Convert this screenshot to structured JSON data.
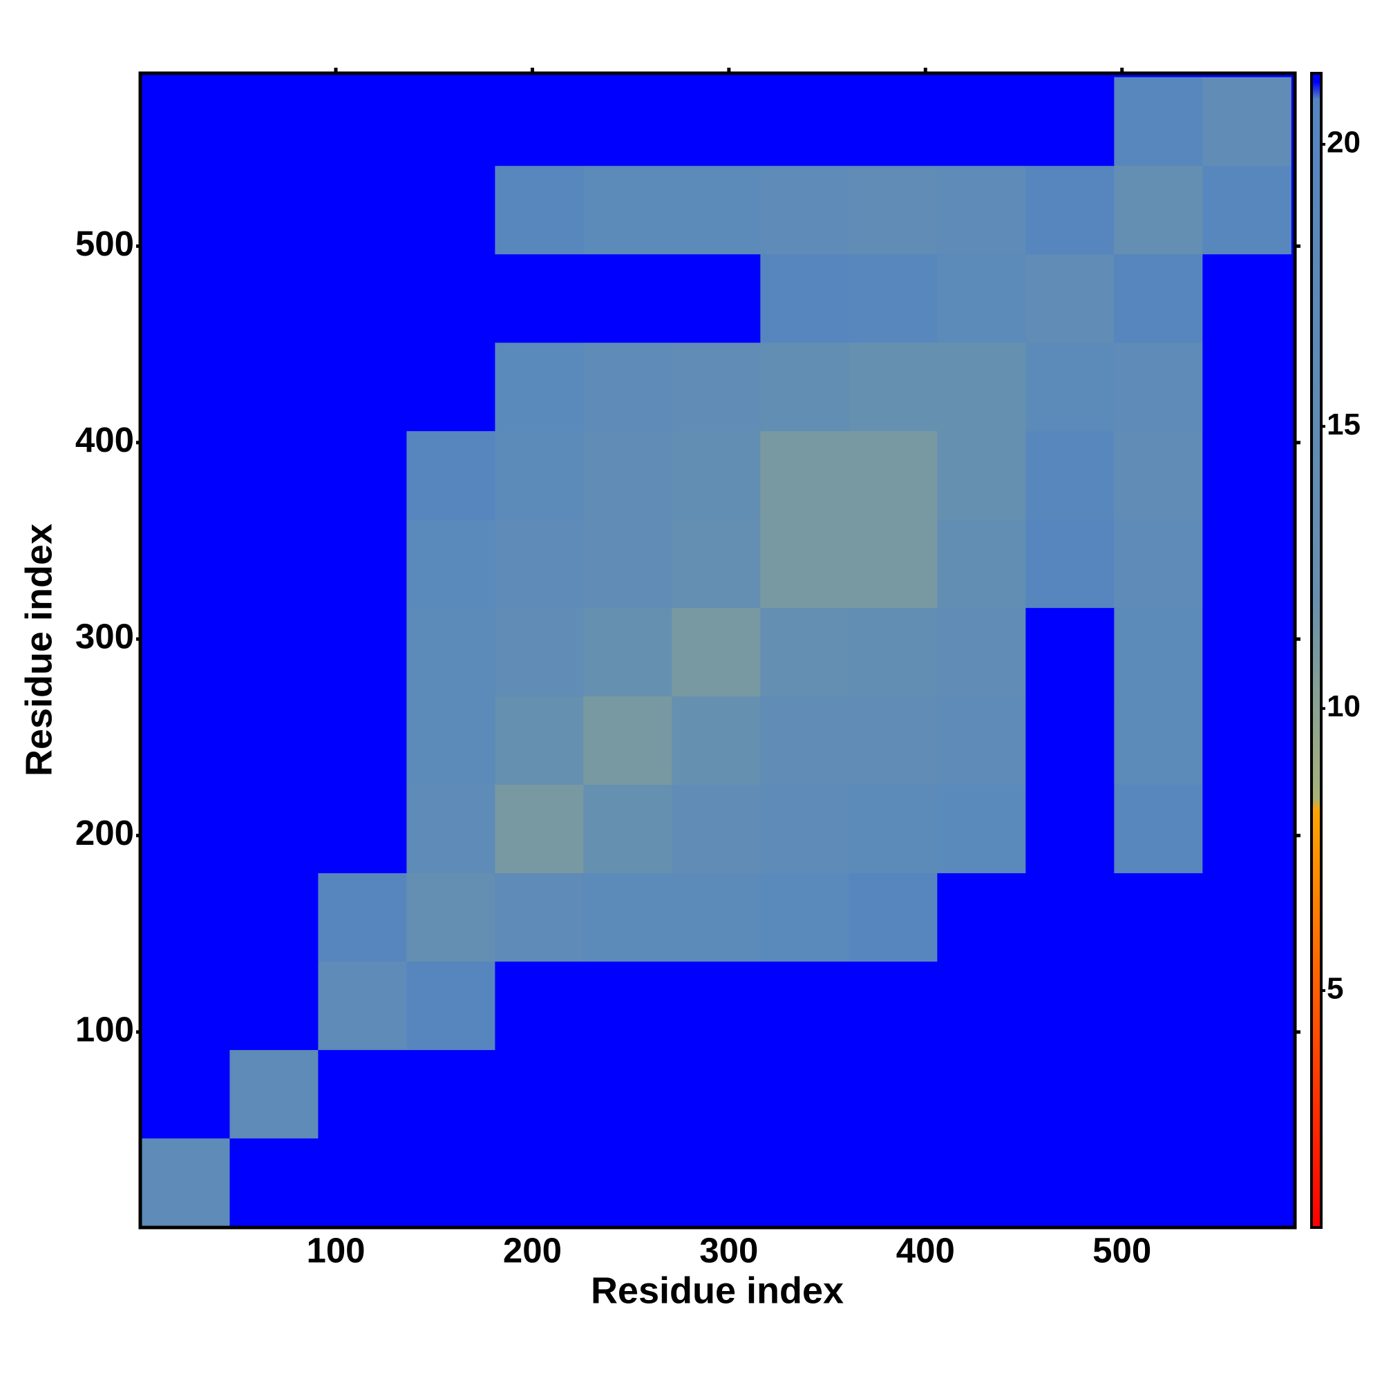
{
  "chart_data": {
    "type": "heatmap",
    "x_label": "Residue index",
    "y_label": "Residue index",
    "xbins": [
      1,
      46,
      91,
      136,
      181,
      226,
      271,
      316,
      361,
      406,
      451,
      496,
      541,
      586
    ],
    "ybins": [
      1,
      46,
      91,
      136,
      181,
      226,
      271,
      316,
      361,
      406,
      451,
      496,
      541,
      586
    ],
    "z": [
      [
        16,
        21.2,
        21.2,
        21.2,
        21.2,
        21.2,
        21.2,
        21.2,
        21.2,
        21.2,
        21.2,
        21.2,
        21.2
      ],
      [
        21.2,
        16,
        21.2,
        21.2,
        21.2,
        21.2,
        21.2,
        21.2,
        21.2,
        21.2,
        21.2,
        21.2,
        21.2
      ],
      [
        21.2,
        21.2,
        16,
        20,
        21.2,
        21.2,
        21.2,
        21.2,
        21.2,
        21.2,
        21.2,
        21.2,
        21.2
      ],
      [
        21.2,
        21.2,
        20,
        13,
        16,
        17,
        17,
        18,
        20,
        21.2,
        21.2,
        21.2,
        21.2
      ],
      [
        21.2,
        21.2,
        21.2,
        16,
        11,
        12,
        15,
        16,
        17,
        18,
        21.2,
        19,
        21.2
      ],
      [
        21.2,
        21.2,
        21.2,
        17,
        12,
        11,
        12,
        15,
        15,
        16,
        21.2,
        17,
        21.2
      ],
      [
        21.2,
        21.2,
        21.2,
        17,
        15,
        12,
        11,
        13,
        14,
        15,
        21.2,
        17,
        21.2
      ],
      [
        21.2,
        21.2,
        21.2,
        18,
        16,
        15,
        13,
        11,
        11,
        14,
        20,
        16,
        21.2
      ],
      [
        21.2,
        21.2,
        21.2,
        20,
        17,
        15,
        14,
        11,
        11,
        12,
        19,
        15,
        21.2
      ],
      [
        21.2,
        21.2,
        21.2,
        21.2,
        18,
        16,
        15,
        14,
        12,
        12,
        17,
        16,
        21.2
      ],
      [
        21.2,
        21.2,
        21.2,
        21.2,
        21.2,
        21.2,
        21.2,
        20,
        19,
        17,
        15,
        20,
        21.2
      ],
      [
        21.2,
        21.2,
        21.2,
        21.2,
        19,
        17,
        17,
        16,
        15,
        16,
        20,
        13,
        19
      ],
      [
        21.2,
        21.2,
        21.2,
        21.2,
        21.2,
        21.2,
        21.2,
        21.2,
        21.2,
        21.2,
        21.2,
        19,
        15
      ]
    ],
    "xlim": [
      0.5,
      588
    ],
    "ylim": [
      0.5,
      588
    ],
    "xticks": [
      100,
      200,
      300,
      400,
      500
    ],
    "yticks": [
      100,
      200,
      300,
      400,
      500
    ],
    "zlim": [
      0.8,
      21.26
    ],
    "zticks": [
      5,
      10,
      15,
      20
    ],
    "colorscale": [
      {
        "value": 0.8,
        "color": "#ff0000"
      },
      {
        "value": 8.2,
        "color": "#ffa500"
      },
      {
        "value": 8.4,
        "color": "#a8b27a"
      },
      {
        "value": 12,
        "color": "#6690b0"
      },
      {
        "value": 20.8,
        "color": "#5585c0"
      },
      {
        "value": 21.1,
        "color": "#0000ff"
      }
    ]
  }
}
